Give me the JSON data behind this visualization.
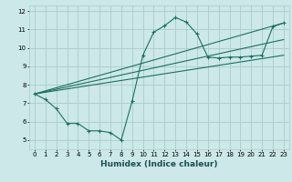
{
  "xlabel": "Humidex (Indice chaleur)",
  "background_color": "#cce8e8",
  "grid_color": "#aacccc",
  "line_color": "#1a7060",
  "xlim": [
    -0.5,
    23.5
  ],
  "ylim": [
    4.5,
    12.3
  ],
  "xticks": [
    0,
    1,
    2,
    3,
    4,
    5,
    6,
    7,
    8,
    9,
    10,
    11,
    12,
    13,
    14,
    15,
    16,
    17,
    18,
    19,
    20,
    21,
    22,
    23
  ],
  "yticks": [
    5,
    6,
    7,
    8,
    9,
    10,
    11,
    12
  ],
  "curve_x": [
    0,
    1,
    2,
    3,
    4,
    5,
    6,
    7,
    8,
    9,
    10,
    11,
    12,
    13,
    14,
    15,
    16,
    17,
    18,
    19,
    20,
    21,
    22,
    23
  ],
  "curve_y": [
    7.5,
    7.2,
    6.7,
    5.9,
    5.9,
    5.5,
    5.5,
    5.4,
    5.0,
    7.1,
    9.6,
    10.85,
    11.2,
    11.65,
    11.4,
    10.75,
    9.5,
    9.45,
    9.5,
    9.5,
    9.55,
    9.6,
    11.15,
    11.35
  ],
  "line2_x": [
    0,
    23
  ],
  "line2_y": [
    7.5,
    11.35
  ],
  "line3_x": [
    0,
    23
  ],
  "line3_y": [
    7.5,
    9.6
  ],
  "line4_x": [
    0,
    23
  ],
  "line4_y": [
    7.5,
    10.45
  ]
}
